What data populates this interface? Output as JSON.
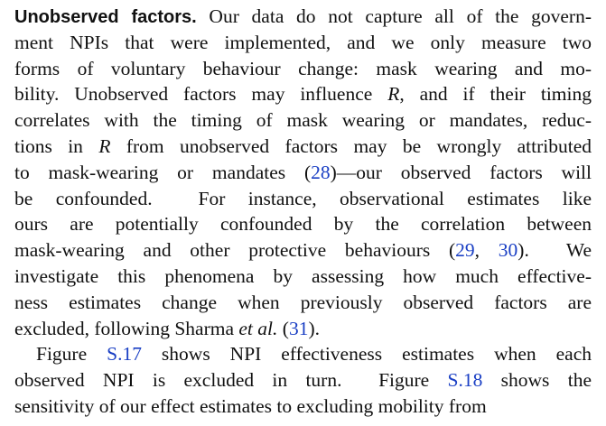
{
  "paragraphs": [
    {
      "indent": false,
      "lines": [
        [
          {
            "text": "Unobserved factors.",
            "style": "bold"
          },
          {
            "text": " Our data do not capture all of the govern-"
          }
        ],
        [
          {
            "text": "ment NPIs that were implemented, and we only measure two"
          }
        ],
        [
          {
            "text": "forms of voluntary behaviour change: mask wearing and mo-"
          }
        ],
        [
          {
            "text": "bility. Unobserved factors may influence "
          },
          {
            "text": "R",
            "style": "italic"
          },
          {
            "text": ", and if their timing"
          }
        ],
        [
          {
            "text": "correlates with the timing of mask wearing or mandates, reduc-"
          }
        ],
        [
          {
            "text": "tions in "
          },
          {
            "text": "R",
            "style": "italic"
          },
          {
            "text": " from unobserved factors may be wrongly attributed"
          }
        ],
        [
          {
            "text": "to mask-wearing or mandates ("
          },
          {
            "text": "28",
            "style": "link"
          },
          {
            "text": ")—our observed factors will"
          }
        ],
        [
          {
            "text": "be confounded.  For instance, observational estimates like"
          }
        ],
        [
          {
            "text": "ours are potentially confounded by the correlation between"
          }
        ],
        [
          {
            "text": "mask-wearing and other protective behaviours ("
          },
          {
            "text": "29",
            "style": "link"
          },
          {
            "text": ", "
          },
          {
            "text": "30",
            "style": "link"
          },
          {
            "text": ").  We"
          }
        ],
        [
          {
            "text": "investigate this phenomena by assessing how much effective-"
          }
        ],
        [
          {
            "text": "ness estimates change when previously observed factors are"
          }
        ],
        [
          {
            "text": "excluded, following Sharma "
          },
          {
            "text": "et al.",
            "style": "italic"
          },
          {
            "text": " ("
          },
          {
            "text": "31",
            "style": "link"
          },
          {
            "text": ")."
          }
        ]
      ]
    },
    {
      "indent": true,
      "lines": [
        [
          {
            "text": "Figure "
          },
          {
            "text": "S.17",
            "style": "link"
          },
          {
            "text": " shows NPI effectiveness estimates when each"
          }
        ],
        [
          {
            "text": "observed NPI is excluded in turn.  Figure "
          },
          {
            "text": "S.18",
            "style": "link"
          },
          {
            "text": " shows the"
          }
        ],
        [
          {
            "text": "sensitivity of our effect estimates to excluding mobility from"
          }
        ]
      ]
    }
  ]
}
